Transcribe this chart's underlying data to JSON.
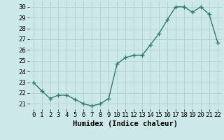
{
  "x": [
    0,
    1,
    2,
    3,
    4,
    5,
    6,
    7,
    8,
    9,
    10,
    11,
    12,
    13,
    14,
    15,
    16,
    17,
    18,
    19,
    20,
    21,
    22
  ],
  "y": [
    23,
    22.2,
    21.5,
    21.8,
    21.8,
    21.4,
    21.0,
    20.8,
    21.0,
    21.5,
    24.7,
    25.3,
    25.5,
    25.5,
    26.5,
    27.5,
    28.8,
    30.0,
    30.0,
    29.5,
    30.0,
    29.3,
    26.7
  ],
  "line_color": "#2e7d6e",
  "marker": "+",
  "marker_size": 4,
  "marker_lw": 1.0,
  "line_width": 1.0,
  "bg_color": "#cce8e8",
  "grid_color": "#b0d0d0",
  "xlabel": "Humidex (Indice chaleur)",
  "xlabel_fontsize": 7.5,
  "tick_fontsize": 6.5,
  "ylim": [
    20.5,
    30.5
  ],
  "yticks": [
    21,
    22,
    23,
    24,
    25,
    26,
    27,
    28,
    29,
    30
  ],
  "xlim": [
    -0.5,
    22.5
  ],
  "xticks": [
    0,
    1,
    2,
    3,
    4,
    5,
    6,
    7,
    8,
    9,
    10,
    11,
    12,
    13,
    14,
    15,
    16,
    17,
    18,
    19,
    20,
    21,
    22
  ]
}
